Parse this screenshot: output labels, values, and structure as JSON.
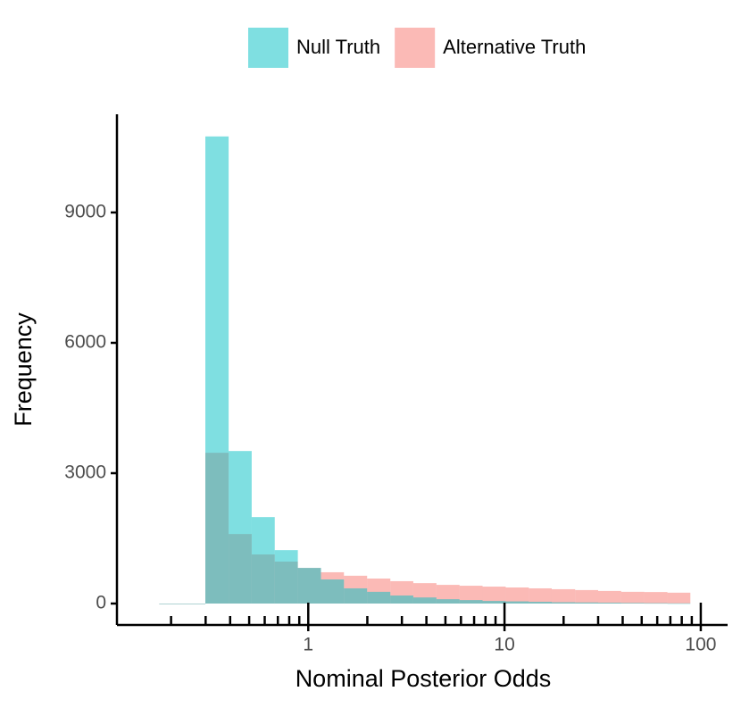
{
  "chart_data": {
    "type": "histogram",
    "xlabel": "Nominal Posterior Odds",
    "ylabel": "Frequency",
    "xscale": "log",
    "bins": [
      0.174,
      0.229,
      0.299,
      0.393,
      0.515,
      0.675,
      0.885,
      1.161,
      1.52,
      1.995,
      2.62,
      3.43,
      4.5,
      5.9,
      7.73,
      10.14,
      13.3,
      17.4,
      22.9,
      30.0,
      39.3,
      51.5,
      67.6,
      88.5
    ],
    "series": [
      {
        "name": "Null Truth",
        "color": "#00bfc4",
        "values": [
          0,
          0,
          10750,
          3510,
          1990,
          1230,
          820,
          555,
          350,
          270,
          185,
          140,
          100,
          80,
          60,
          50,
          40,
          30,
          25,
          20,
          15,
          10,
          5
        ]
      },
      {
        "name": "Alternative Truth",
        "color": "#f8766d",
        "values": [
          0,
          0,
          3470,
          1600,
          1130,
          965,
          820,
          720,
          640,
          575,
          515,
          470,
          430,
          410,
          390,
          370,
          350,
          330,
          310,
          290,
          270,
          265,
          250
        ]
      }
    ],
    "xlim": [
      0.106,
      137
    ],
    "xticks": [
      1,
      10,
      100
    ],
    "xminorticks": [
      0.2,
      0.3,
      0.4,
      0.5,
      0.6,
      0.7,
      0.8,
      0.9,
      2,
      3,
      4,
      5,
      6,
      7,
      8,
      9,
      20,
      30,
      40,
      50,
      60,
      70,
      80,
      90
    ],
    "ylim": [
      -493,
      11260
    ],
    "yticks": [
      0,
      3000,
      6000,
      9000
    ],
    "legend": "top"
  }
}
